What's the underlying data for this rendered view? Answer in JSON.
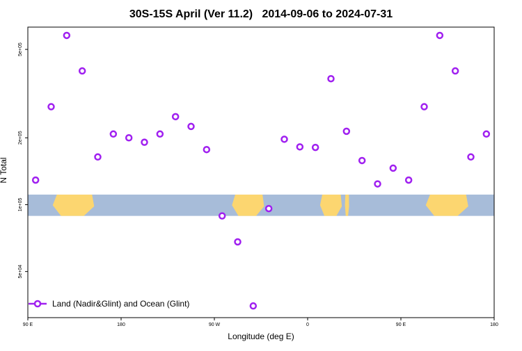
{
  "chart_data": {
    "type": "scatter",
    "title": "30S-15S April (Ver 11.2)   2014-09-06 to 2024-07-31",
    "xlabel": "Longitude (deg E)",
    "ylabel": "N Total",
    "y_scale": "log",
    "xlim": [
      90,
      540
    ],
    "ylim": [
      31000,
      630000
    ],
    "x_ticks": [
      {
        "value": 90,
        "label": "90 E"
      },
      {
        "value": 180,
        "label": "180"
      },
      {
        "value": 270,
        "label": "90 W"
      },
      {
        "value": 360,
        "label": "0"
      },
      {
        "value": 450,
        "label": "90 E"
      },
      {
        "value": 540,
        "label": "180"
      }
    ],
    "y_ticks": [
      {
        "value": 50000,
        "label": "5e+04"
      },
      {
        "value": 100000,
        "label": "1e+05"
      },
      {
        "value": 200000,
        "label": "2e+05"
      },
      {
        "value": 500000,
        "label": "5e+05"
      }
    ],
    "series": [
      {
        "name": "Land (Nadir&Glint) and Ocean (Glint)",
        "color": "#a020f0",
        "points": [
          {
            "x": 97.5,
            "y": 129000
          },
          {
            "x": 112.5,
            "y": 276000
          },
          {
            "x": 127.5,
            "y": 578000
          },
          {
            "x": 142.5,
            "y": 400000
          },
          {
            "x": 157.5,
            "y": 164000
          },
          {
            "x": 172.5,
            "y": 208000
          },
          {
            "x": 187.5,
            "y": 200000
          },
          {
            "x": 202.5,
            "y": 191000
          },
          {
            "x": 217.5,
            "y": 208000
          },
          {
            "x": 232.5,
            "y": 249000
          },
          {
            "x": 247.5,
            "y": 225000
          },
          {
            "x": 262.5,
            "y": 177000
          },
          {
            "x": 277.5,
            "y": 89000
          },
          {
            "x": 292.5,
            "y": 68000
          },
          {
            "x": 307.5,
            "y": 35000
          },
          {
            "x": 322.5,
            "y": 96000
          },
          {
            "x": 337.5,
            "y": 197000
          },
          {
            "x": 352.5,
            "y": 182000
          },
          {
            "x": 367.5,
            "y": 181000
          },
          {
            "x": 382.5,
            "y": 369000
          },
          {
            "x": 397.5,
            "y": 214000
          },
          {
            "x": 412.5,
            "y": 158000
          },
          {
            "x": 427.5,
            "y": 124000
          },
          {
            "x": 442.5,
            "y": 146000
          },
          {
            "x": 457.5,
            "y": 129000
          },
          {
            "x": 472.5,
            "y": 276000
          },
          {
            "x": 487.5,
            "y": 578000
          },
          {
            "x": 502.5,
            "y": 400000
          },
          {
            "x": 517.5,
            "y": 164000
          },
          {
            "x": 532.5,
            "y": 208000
          }
        ]
      }
    ],
    "legend": "bottom-left",
    "grid": false,
    "background_map": {
      "ocean_color": "#a7bcd9",
      "land_color": "#fcd670",
      "y_band": [
        89000,
        111000
      ],
      "land_lon_ranges": [
        [
          114,
          154
        ],
        [
          287,
          318
        ],
        [
          372,
          393
        ],
        [
          396,
          400
        ],
        [
          474,
          515
        ]
      ]
    }
  }
}
